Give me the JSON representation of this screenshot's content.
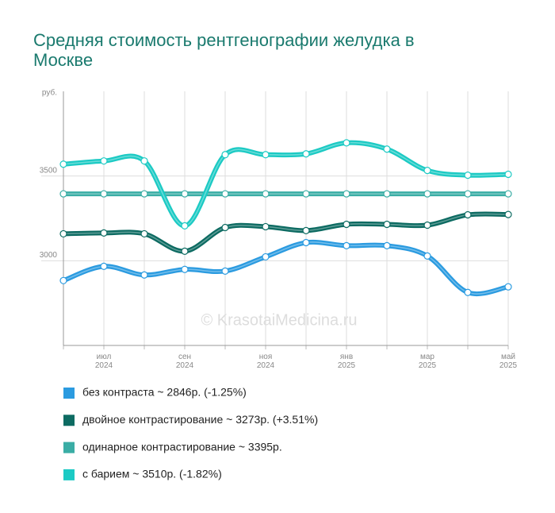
{
  "chart_data": {
    "type": "line",
    "title": "Средняя стоимость рентгенографии желудка в Москве",
    "y_label": "руб.",
    "watermark": "© KrasotaiMedicina.ru",
    "categories": [
      null,
      "июл 2024",
      null,
      "сен 2024",
      null,
      "ноя 2024",
      null,
      "янв 2025",
      null,
      "мар 2025",
      null,
      "май 2025"
    ],
    "ylim": [
      2500,
      4000
    ],
    "yticks": [
      3000,
      3500
    ],
    "grid": true,
    "series": [
      {
        "name": "без контраста ~ 2846р. (-1.25%)",
        "color": "#2b9be0",
        "values": [
          2883,
          2967,
          2916,
          2949,
          2939,
          3023,
          3107,
          3089,
          3089,
          3028,
          2813,
          2846
        ]
      },
      {
        "name": "двойное контрастирование ~ 3273р. (+3.51%)",
        "color": "#0d6b62",
        "values": [
          3159,
          3164,
          3159,
          3056,
          3196,
          3201,
          3178,
          3215,
          3215,
          3210,
          3271,
          3273
        ]
      },
      {
        "name": "одинарное контрастирование ~ 3395р.",
        "color": "#3aada5",
        "values": [
          3395,
          3395,
          3395,
          3395,
          3395,
          3395,
          3395,
          3395,
          3395,
          3395,
          3395,
          3395
        ]
      },
      {
        "name": "с барием ~ 3510р. (-1.82%)",
        "color": "#1ccac4",
        "values": [
          3570,
          3589,
          3589,
          3206,
          3626,
          3626,
          3631,
          3696,
          3659,
          3533,
          3505,
          3510
        ]
      }
    ]
  }
}
